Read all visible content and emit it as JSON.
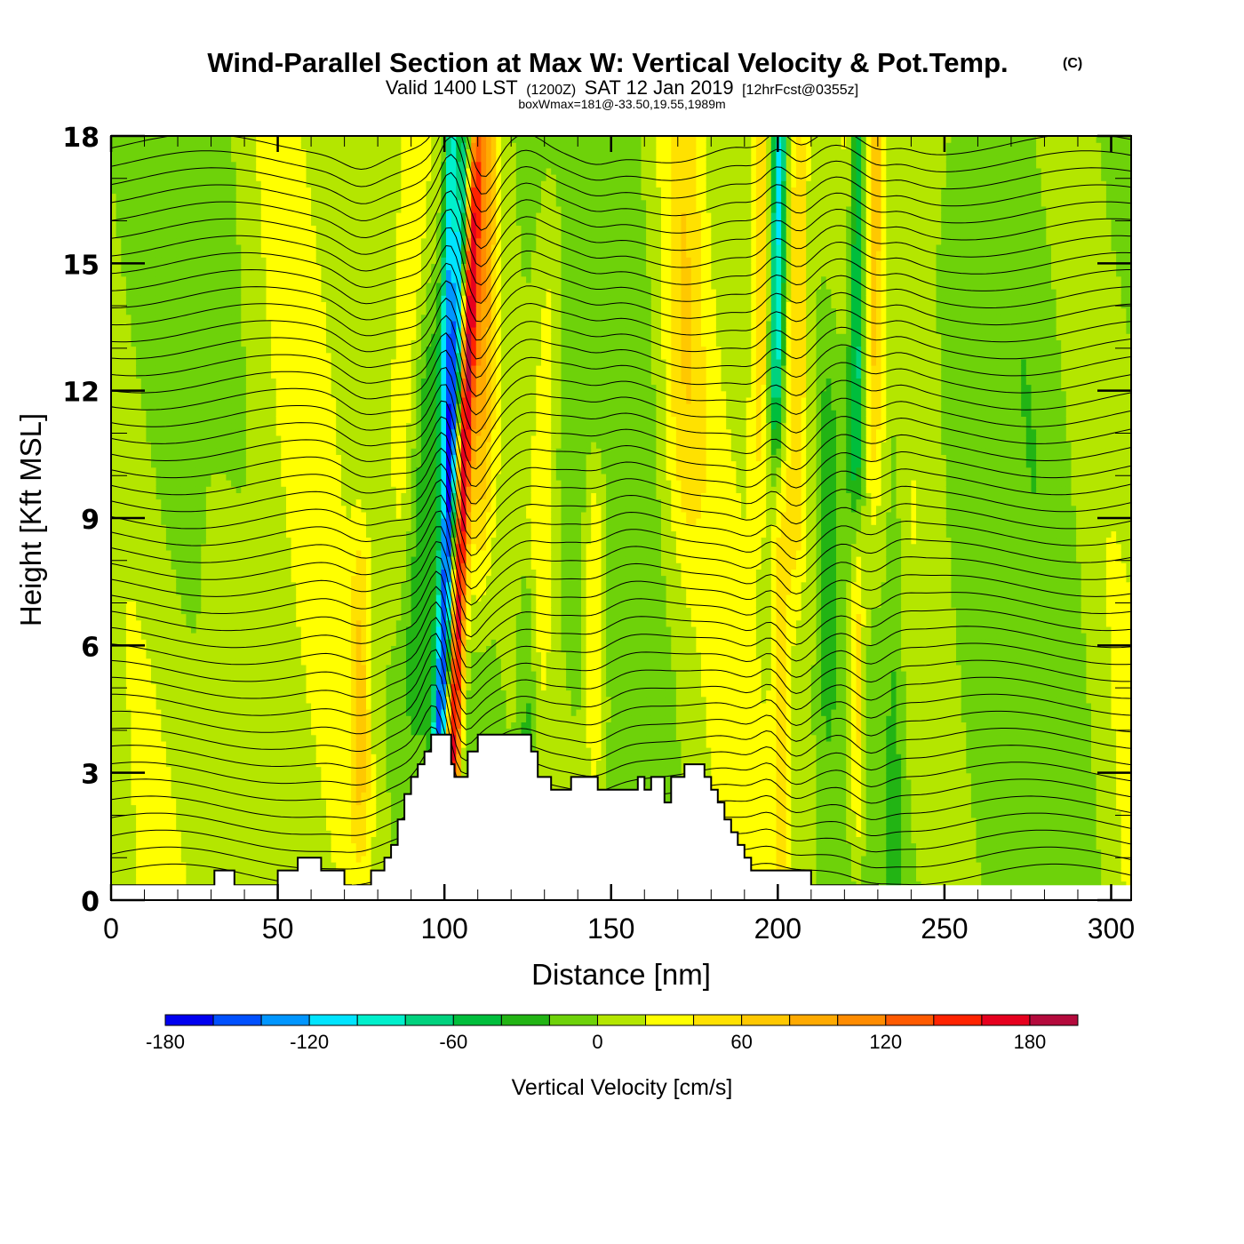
{
  "chart_data": {
    "type": "heatmap",
    "title": "Wind-Parallel Section at Max W: Vertical Velocity & Pot.Temp.",
    "title_mark": "(C)",
    "subtitle_parts": {
      "valid": "Valid 1400 LST",
      "zulu": "(1200Z)",
      "date": "SAT 12 Jan 2019",
      "forecast": "[12hrFcst@0355z]"
    },
    "annotation": "boxWmax=181@-33.50,19.55,1989m",
    "xlabel": "Distance [nm]",
    "ylabel": "Height [Kft MSL]",
    "xlim": [
      0,
      306
    ],
    "ylim": [
      0,
      18
    ],
    "x_ticks": [
      0,
      50,
      100,
      150,
      200,
      250,
      300
    ],
    "x_tick_labels": [
      "0",
      "50",
      "100",
      "150",
      "200",
      "250",
      "300"
    ],
    "x_minor_step": 10,
    "y_ticks": [
      0,
      3,
      6,
      9,
      12,
      15,
      18
    ],
    "y_tick_labels": [
      "0",
      "3",
      "6",
      "9",
      "12",
      "15",
      "18"
    ],
    "y_minor_step": 1,
    "colorbar": {
      "label": "Vertical Velocity [cm/s]",
      "levels": [
        -180,
        -160,
        -140,
        -120,
        -100,
        -80,
        -60,
        -40,
        -20,
        0,
        20,
        40,
        60,
        80,
        100,
        120,
        140,
        160,
        180,
        200
      ],
      "tick_values": [
        -180,
        -120,
        -60,
        0,
        60,
        120,
        180
      ],
      "tick_labels": [
        "-180",
        "-120",
        "-60",
        "0",
        "60",
        "120",
        "180"
      ],
      "colors": [
        "#0000f0",
        "#0050ff",
        "#0096ff",
        "#00e4ff",
        "#00f0cc",
        "#00d27e",
        "#00be3c",
        "#22b414",
        "#6ed20a",
        "#b4e600",
        "#ffff00",
        "#ffe100",
        "#ffc800",
        "#ffaa00",
        "#ff8c00",
        "#ff5a00",
        "#ff2300",
        "#e6001e",
        "#b40a3c"
      ]
    },
    "velocity_features": [
      {
        "x": 100,
        "y": 6.5,
        "value": -150,
        "width": 2.2,
        "tilt": 0.55,
        "depth": 14
      },
      {
        "x": 104.5,
        "y": 7.5,
        "value": 181,
        "width": 2.4,
        "tilt": 0.45,
        "depth": 11
      },
      {
        "x": 101.5,
        "y": 16,
        "value": -110,
        "width": 2.0,
        "tilt": 0.3,
        "depth": 6
      },
      {
        "x": 112,
        "y": 15,
        "value": 75,
        "width": 3.5,
        "tilt": 0.2,
        "depth": 8
      },
      {
        "x": 90,
        "y": 15,
        "value": 40,
        "width": 5,
        "tilt": 0.4,
        "depth": 8
      },
      {
        "x": 200,
        "y": 15.5,
        "value": -110,
        "width": 2.2,
        "tilt": 0.15,
        "depth": 5
      },
      {
        "x": 195,
        "y": 15,
        "value": 45,
        "width": 3,
        "tilt": 0.1,
        "depth": 6
      },
      {
        "x": 206,
        "y": 14,
        "value": 55,
        "width": 3,
        "tilt": 0.1,
        "depth": 7
      },
      {
        "x": 201,
        "y": 5,
        "value": 45,
        "width": 2.5,
        "tilt": 0.0,
        "depth": 5
      },
      {
        "x": 224,
        "y": 15,
        "value": -80,
        "width": 2.5,
        "tilt": 0.1,
        "depth": 6
      },
      {
        "x": 229,
        "y": 15,
        "value": 40,
        "width": 2.5,
        "tilt": 0.1,
        "depth": 6
      },
      {
        "x": 224,
        "y": 5,
        "value": 50,
        "width": 2.2,
        "tilt": 0.0,
        "depth": 4
      },
      {
        "x": 75,
        "y": 5,
        "value": 50,
        "width": 3,
        "tilt": 0.0,
        "depth": 4
      },
      {
        "x": 145,
        "y": 6.5,
        "value": 45,
        "width": 3,
        "tilt": 0.0,
        "depth": 4
      },
      {
        "x": 172,
        "y": 15,
        "value": 40,
        "width": 6,
        "tilt": 0.0,
        "depth": 7
      },
      {
        "x": 130,
        "y": 11,
        "value": 35,
        "width": 4,
        "tilt": 0.3,
        "depth": 6
      },
      {
        "x": 93,
        "y": 9,
        "value": -35,
        "width": 5,
        "tilt": 0.3,
        "depth": 5
      },
      {
        "x": 125,
        "y": 5,
        "value": -40,
        "width": 3,
        "tilt": 0.0,
        "depth": 3
      },
      {
        "x": 215,
        "y": 8,
        "value": -35,
        "width": 3,
        "tilt": 0.0,
        "depth": 5
      },
      {
        "x": 235,
        "y": 10,
        "value": -25,
        "width": 3,
        "tilt": 0.0,
        "depth": 12
      }
    ],
    "terrain_kft": {
      "x": [
        0,
        30,
        31,
        37,
        50,
        56,
        63,
        70,
        72,
        74,
        78,
        82,
        84,
        86,
        88,
        90,
        92,
        94,
        96,
        98,
        100,
        102,
        103,
        107,
        110,
        126,
        128,
        132,
        138,
        146,
        158,
        160,
        162,
        166,
        168,
        172,
        178,
        180,
        182,
        184,
        186,
        188,
        190,
        192,
        194,
        210,
        229,
        230,
        306
      ],
      "height": [
        0.35,
        0.35,
        0.7,
        0.35,
        0.7,
        1.0,
        0.7,
        0.35,
        0.0,
        0.35,
        0.7,
        1.0,
        1.3,
        1.9,
        2.5,
        2.9,
        3.2,
        3.5,
        3.9,
        3.9,
        3.9,
        3.2,
        2.9,
        3.5,
        3.9,
        3.5,
        2.9,
        2.6,
        2.9,
        2.6,
        2.9,
        2.6,
        2.9,
        2.3,
        2.9,
        3.2,
        2.9,
        2.6,
        2.3,
        1.9,
        1.6,
        1.3,
        1.0,
        0.7,
        0.7,
        0.35,
        0.35,
        0.0,
        0.0
      ]
    },
    "theta_contours": {
      "count": 44,
      "base_kft": 0.6,
      "step_kft": 0.4
    }
  }
}
